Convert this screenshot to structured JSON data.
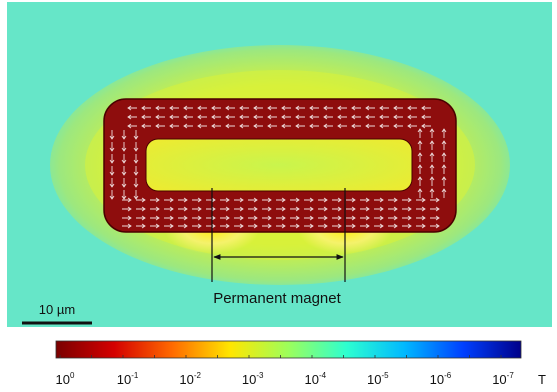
{
  "figure": {
    "annotation": "Permanent magnet",
    "scale_bar": "10 µm"
  },
  "colorbar": {
    "unit": "T",
    "ticks": [
      {
        "base": "10",
        "exp": "0"
      },
      {
        "base": "10",
        "exp": "-1"
      },
      {
        "base": "10",
        "exp": "-2"
      },
      {
        "base": "10",
        "exp": "-3"
      },
      {
        "base": "10",
        "exp": "-4"
      },
      {
        "base": "10",
        "exp": "-5"
      },
      {
        "base": "10",
        "exp": "-6"
      },
      {
        "base": "10",
        "exp": "-7"
      }
    ],
    "colors": [
      "#7a0000",
      "#d40000",
      "#ff6a00",
      "#ffe600",
      "#9cff5c",
      "#2dffd0",
      "#00b8ff",
      "#0040ff",
      "#00008a"
    ]
  }
}
